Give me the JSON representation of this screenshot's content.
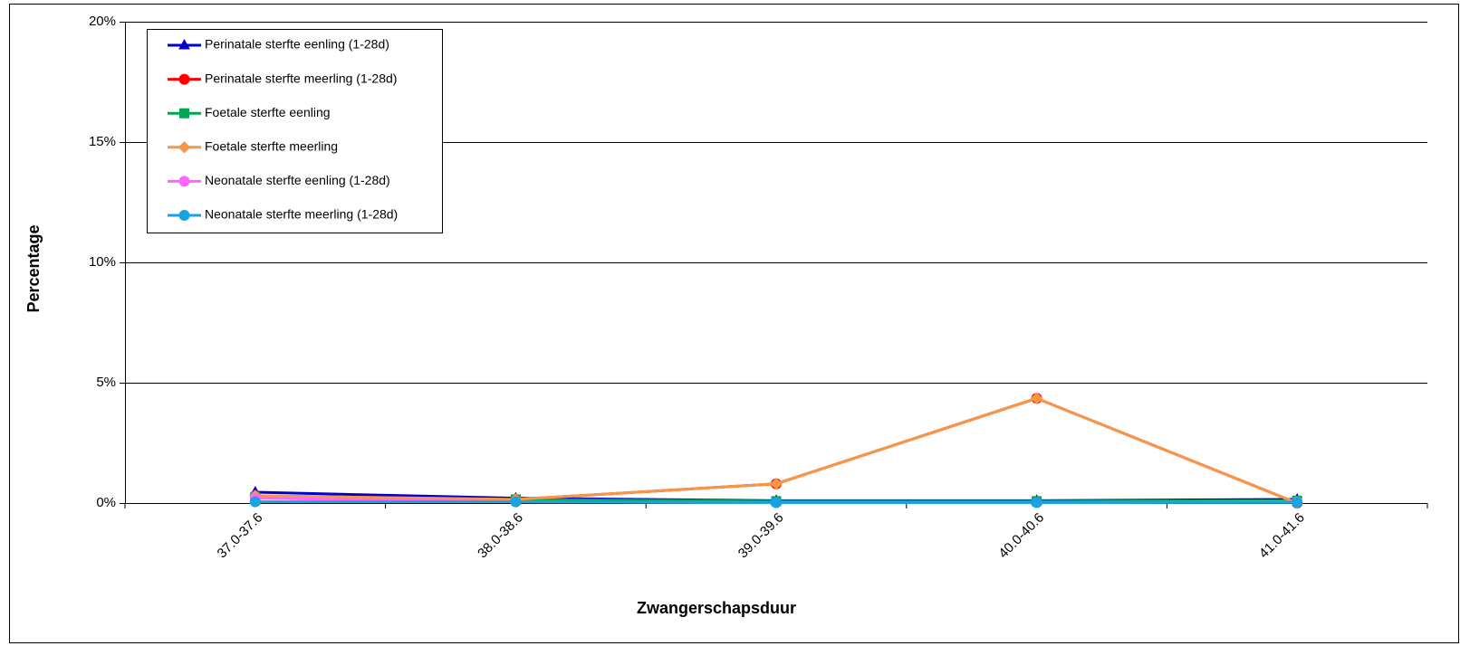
{
  "chart_data": {
    "type": "line",
    "x_label": "Zwangerschapsduur",
    "y_label": "Percentage",
    "categories": [
      "37.0-37.6",
      "38.0-38.6",
      "39.0-39.6",
      "40.0-40.6",
      "41.0-41.6"
    ],
    "series": [
      {
        "name": "Perinatale sterfte eenling (1-28d)",
        "color": "#0000cc",
        "marker": "triangle",
        "values": [
          0.45,
          0.2,
          0.1,
          0.1,
          0.15
        ]
      },
      {
        "name": "Perinatale sterfte meerling (1-28d)",
        "color": "#ff0000",
        "marker": "circle",
        "values": [
          0.3,
          0.15,
          0.8,
          4.35,
          0.0
        ]
      },
      {
        "name": "Foetale sterfte eenling",
        "color": "#00a651",
        "marker": "square",
        "values": [
          0.25,
          0.15,
          0.08,
          0.08,
          0.1
        ]
      },
      {
        "name": "Foetale sterfte meerling",
        "color": "#f79646",
        "marker": "diamond",
        "values": [
          0.3,
          0.15,
          0.8,
          4.35,
          0.0
        ]
      },
      {
        "name": "Neonatale sterfte eenling (1-28d)",
        "color": "#ff66ff",
        "marker": "circle",
        "values": [
          0.2,
          0.05,
          0.02,
          0.02,
          0.05
        ]
      },
      {
        "name": "Neonatale sterfte meerling (1-28d)",
        "color": "#1aa3e0",
        "marker": "circle",
        "values": [
          0.05,
          0.05,
          0.02,
          0.02,
          0.03
        ]
      }
    ],
    "ylim": [
      0,
      20
    ],
    "yticks": [
      {
        "value": 0,
        "label": "0%"
      },
      {
        "value": 5,
        "label": "5%"
      },
      {
        "value": 10,
        "label": "10%"
      },
      {
        "value": 15,
        "label": "15%"
      },
      {
        "value": 20,
        "label": "20%"
      }
    ],
    "grid": true,
    "legend": "upper left"
  }
}
